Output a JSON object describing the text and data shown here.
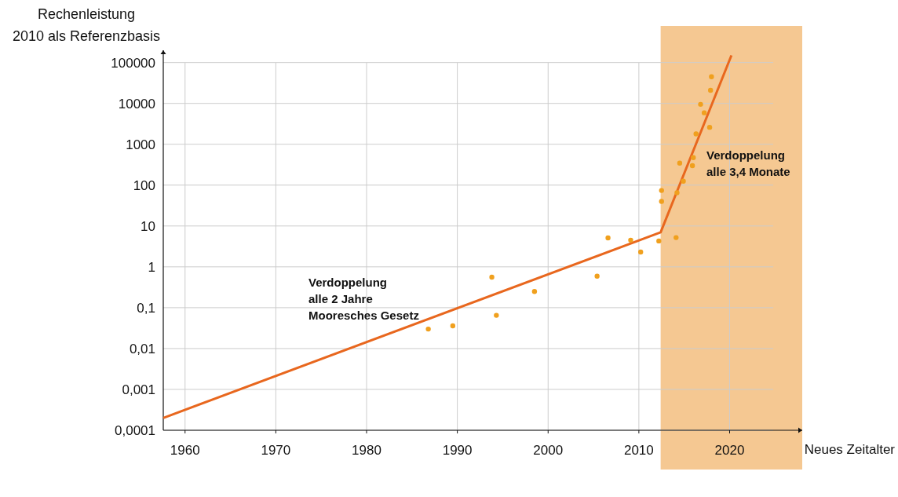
{
  "chart_data": {
    "type": "scatter",
    "ylabel": "Rechenleistung\n2010 als Referenzbasis",
    "xlabel": "Neues Zeitalter",
    "log": "y",
    "grid": true,
    "xlim": [
      1957.6,
      2028
    ],
    "xticks": [
      1960,
      1970,
      1980,
      1990,
      2000,
      2010,
      2020
    ],
    "ylim": [
      0.0001,
      200000
    ],
    "yticks": [
      {
        "value": 0.0001,
        "label": "0,0001"
      },
      {
        "value": 0.001,
        "label": "0,001"
      },
      {
        "value": 0.01,
        "label": "0,01"
      },
      {
        "value": 0.1,
        "label": "0,1"
      },
      1,
      10,
      100,
      1000,
      10000,
      100000
    ],
    "bands": [
      {
        "axis": "x",
        "from": 2012.4,
        "to": 2028,
        "color": "#f5c892"
      }
    ],
    "series": [
      {
        "type": "line",
        "color": "#e8671e",
        "x": [
          1957.6,
          2012.4,
          2020.2
        ],
        "values": [
          0.0002,
          7,
          150000
        ]
      },
      {
        "color": "#f0a01e",
        "x": [
          1986.8,
          1989.5,
          1993.8,
          1994.3,
          1998.5,
          2005.4,
          2006.6,
          2009.1,
          2010.2,
          2012.2,
          2012.5,
          2012.5,
          2014.1,
          2014.2,
          2014.5,
          2014.9,
          2015.9,
          2016.0,
          2016.3,
          2016.8,
          2017.2,
          2017.8,
          2017.9,
          2018.0
        ],
        "values": [
          0.03,
          0.036,
          0.56,
          0.065,
          0.25,
          0.59,
          5.1,
          4.5,
          2.3,
          4.3,
          74,
          40,
          5.2,
          65,
          345,
          125,
          300,
          470,
          1800,
          9500,
          5900,
          2600,
          21000,
          45000
        ]
      }
    ],
    "annotations": [
      "Verdoppelung\nalle 2 Jahre\nMooresches Gesetz",
      "Verdoppelung\nalle 3,4 Monate"
    ]
  }
}
